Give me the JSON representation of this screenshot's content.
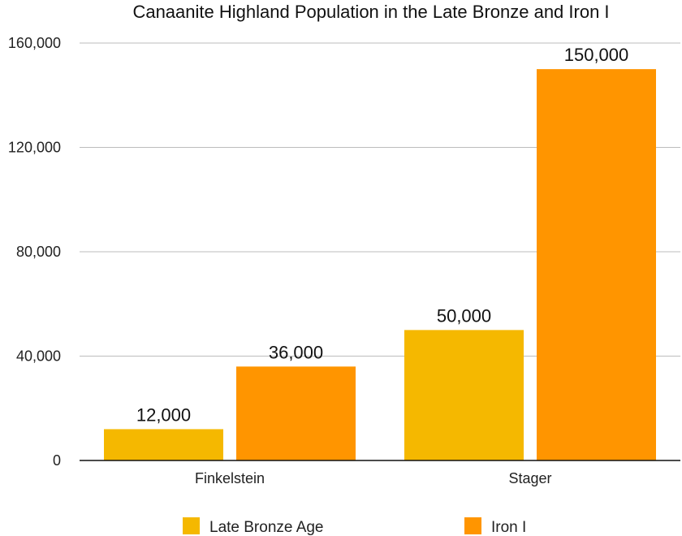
{
  "chart_data": {
    "type": "bar",
    "title": "Canaanite Highland Population in the Late Bronze and Iron I",
    "categories": [
      "Finkelstein",
      "Stager"
    ],
    "series": [
      {
        "name": "Late Bronze Age",
        "values": [
          12000,
          50000
        ],
        "color": "#F5B800"
      },
      {
        "name": "Iron I",
        "values": [
          36000,
          150000
        ],
        "color": "#FF9500"
      }
    ],
    "value_labels": [
      [
        "12,000",
        "50,000"
      ],
      [
        "36,000",
        "150,000"
      ]
    ],
    "ylim": [
      0,
      160000
    ],
    "yticks": [
      0,
      40000,
      80000,
      120000,
      160000
    ],
    "ytick_labels": [
      "0",
      "40,000",
      "80,000",
      "120,000",
      "160,000"
    ],
    "grid": true,
    "legend_position": "bottom"
  }
}
